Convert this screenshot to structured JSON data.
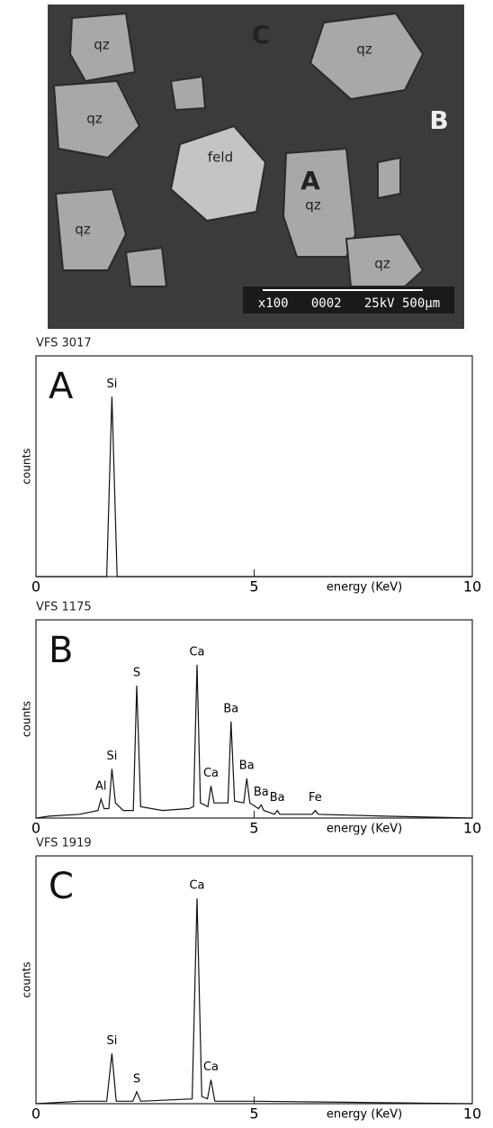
{
  "image": {
    "labels": [
      "qz",
      "qz",
      "qz",
      "qz",
      "qz",
      "qz",
      "feld",
      "A",
      "B",
      "C"
    ],
    "scale_bar": "x100   0002   25kV 500µm"
  },
  "chart_data": [
    {
      "type": "line",
      "title": "VFS 3017",
      "panel_label": "A",
      "x_label": "energy (KeV)",
      "y_label": "counts",
      "xlim": [
        0,
        10
      ],
      "xticks": [
        0,
        5,
        10
      ],
      "ylim": [
        0,
        100
      ],
      "color": "#111111",
      "x": [
        0,
        1.62,
        1.74,
        1.86,
        10
      ],
      "values": [
        0,
        0,
        85,
        0,
        0
      ],
      "annotations": [
        {
          "text": "Si",
          "x": 1.74
        }
      ]
    },
    {
      "type": "line",
      "title": "VFS 1175",
      "panel_label": "B",
      "x_label": "energy (KeV)",
      "y_label": "counts",
      "xlim": [
        0,
        10
      ],
      "xticks": [
        0,
        5,
        10
      ],
      "ylim": [
        0,
        100
      ],
      "color": "#111111",
      "x": [
        0,
        0.3,
        1.0,
        1.42,
        1.49,
        1.56,
        1.67,
        1.74,
        1.82,
        2.0,
        2.23,
        2.31,
        2.4,
        2.9,
        3.5,
        3.61,
        3.69,
        3.77,
        3.94,
        4.01,
        4.08,
        4.4,
        4.47,
        4.55,
        4.76,
        4.83,
        4.9,
        5.1,
        5.16,
        5.22,
        5.47,
        5.53,
        5.59,
        6.33,
        6.4,
        6.47,
        8,
        10
      ],
      "values": [
        0,
        1,
        2,
        4,
        10,
        5,
        5,
        26,
        8,
        4,
        4,
        70,
        6,
        4,
        5,
        6,
        81,
        8,
        6,
        17,
        8,
        8,
        51,
        9,
        8,
        21,
        8,
        5,
        7,
        4,
        2,
        4,
        2,
        2,
        4,
        2,
        1,
        0
      ],
      "annotations": [
        {
          "text": "Al",
          "x": 1.49
        },
        {
          "text": "Si",
          "x": 1.74
        },
        {
          "text": "S",
          "x": 2.31
        },
        {
          "text": "Ca",
          "x": 3.69
        },
        {
          "text": "Ca",
          "x": 4.01
        },
        {
          "text": "Ba",
          "x": 4.47
        },
        {
          "text": "Ba",
          "x": 4.83
        },
        {
          "text": "Ba",
          "x": 5.16
        },
        {
          "text": "Ba",
          "x": 5.53
        },
        {
          "text": "Fe",
          "x": 6.4
        }
      ]
    },
    {
      "type": "line",
      "title": "VFS 1919",
      "panel_label": "C",
      "x_label": "energy (KeV)",
      "y_label": "counts",
      "xlim": [
        0,
        10
      ],
      "xticks": [
        0,
        5,
        10
      ],
      "ylim": [
        0,
        100
      ],
      "color": "#111111",
      "x": [
        0,
        1.0,
        1.62,
        1.74,
        1.84,
        2.22,
        2.31,
        2.4,
        3.58,
        3.69,
        3.8,
        3.93,
        4.01,
        4.1,
        5,
        10
      ],
      "values": [
        0,
        1,
        1,
        21,
        1,
        1,
        5,
        1,
        2,
        86,
        3,
        2,
        10,
        1,
        1,
        0
      ],
      "annotations": [
        {
          "text": "Si",
          "x": 1.74
        },
        {
          "text": "S",
          "x": 2.31
        },
        {
          "text": "Ca",
          "x": 3.69
        },
        {
          "text": "Ca",
          "x": 4.01
        }
      ]
    }
  ]
}
